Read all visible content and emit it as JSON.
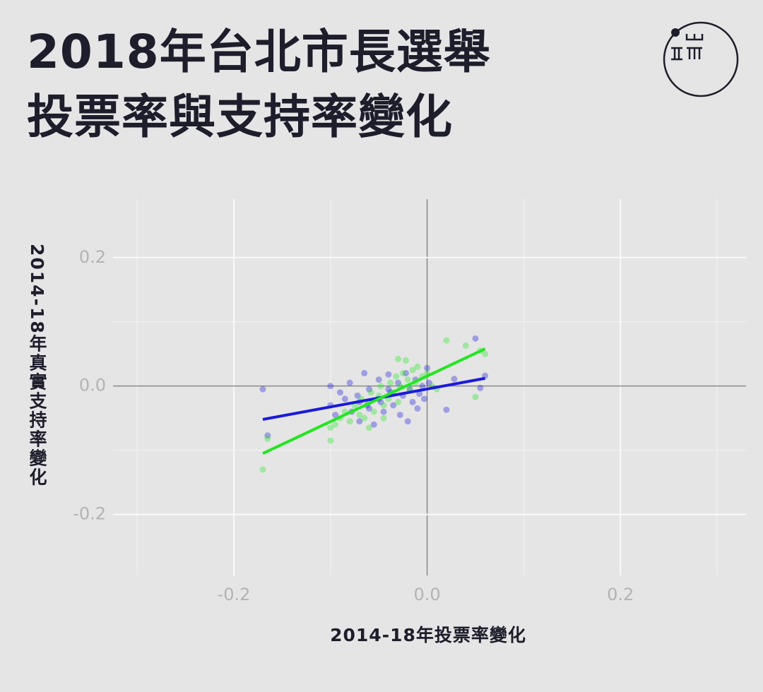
{
  "chart_data": {
    "type": "scatter",
    "title_lines": [
      "2018年台北市長選舉",
      "投票率與支持率變化"
    ],
    "x_label": "2014-18年投票率變化",
    "y_label": "2014-18年真實支持率變化",
    "xlim": [
      -0.325,
      0.33
    ],
    "ylim": [
      -0.295,
      0.291
    ],
    "xticks": [
      -0.2,
      {
        "value": 0,
        "label": "0.0"
      },
      0.2
    ],
    "yticks": [
      -0.2,
      {
        "value": 0,
        "label": "0.0"
      },
      0.2
    ],
    "x_minor_grid": [
      -0.3,
      -0.1,
      0.1,
      0.3
    ],
    "y_minor_grid": [
      -0.1,
      0.1
    ],
    "grid": true,
    "series": [
      {
        "color": "#1a1adb",
        "x": [
          -0.17,
          -0.165,
          0.05,
          0.055,
          0.06,
          0.02,
          0.028,
          -0.1,
          -0.1,
          -0.095,
          -0.09,
          -0.085,
          -0.08,
          -0.078,
          -0.072,
          -0.07,
          -0.065,
          -0.062,
          -0.06,
          -0.055,
          -0.05,
          -0.048,
          -0.045,
          -0.04,
          -0.038,
          -0.035,
          -0.03,
          -0.028,
          -0.025,
          -0.022,
          -0.02,
          -0.018,
          -0.015,
          -0.012,
          -0.01,
          -0.008,
          -0.005,
          -0.003,
          0.0,
          0.002,
          -0.06,
          -0.05,
          -0.04,
          -0.07
        ],
        "values": [
          -0.005,
          -0.077,
          0.074,
          -0.003,
          0.016,
          -0.037,
          0.011,
          0.0,
          -0.03,
          -0.045,
          -0.01,
          -0.02,
          0.005,
          -0.04,
          -0.015,
          -0.055,
          0.02,
          -0.03,
          -0.005,
          -0.06,
          0.01,
          -0.025,
          -0.04,
          0.018,
          -0.01,
          -0.03,
          0.005,
          -0.045,
          -0.015,
          0.02,
          -0.055,
          -0.005,
          -0.025,
          0.01,
          -0.035,
          -0.012,
          0.0,
          -0.02,
          0.028,
          0.005,
          -0.035,
          -0.02,
          -0.005,
          -0.025
        ],
        "fit": {
          "x": [
            -0.17,
            0.06
          ],
          "values": [
            -0.052,
            0.012
          ]
        }
      },
      {
        "color": "#22e622",
        "x": [
          -0.17,
          -0.165,
          0.02,
          0.04,
          0.06,
          0.055,
          0.05,
          -0.1,
          -0.1,
          -0.095,
          -0.09,
          -0.085,
          -0.08,
          -0.075,
          -0.07,
          -0.068,
          -0.065,
          -0.06,
          -0.058,
          -0.055,
          -0.05,
          -0.048,
          -0.045,
          -0.04,
          -0.038,
          -0.035,
          -0.032,
          -0.03,
          -0.028,
          -0.025,
          -0.022,
          -0.02,
          -0.018,
          -0.015,
          -0.012,
          -0.01,
          -0.005,
          0.0,
          0.005,
          0.01,
          -0.03,
          -0.06,
          -0.045
        ],
        "values": [
          -0.13,
          -0.082,
          0.071,
          0.063,
          0.05,
          0.055,
          -0.017,
          -0.085,
          -0.065,
          -0.06,
          -0.05,
          -0.04,
          -0.055,
          -0.03,
          -0.045,
          -0.02,
          -0.05,
          -0.025,
          -0.01,
          -0.04,
          -0.015,
          0.0,
          -0.03,
          -0.02,
          0.005,
          -0.01,
          0.015,
          -0.025,
          0.0,
          0.02,
          0.04,
          0.01,
          -0.005,
          0.025,
          0.005,
          0.03,
          0.015,
          0.02,
          0.0,
          -0.005,
          0.042,
          -0.065,
          -0.05
        ],
        "fit": {
          "x": [
            -0.17,
            0.06
          ],
          "values": [
            -0.105,
            0.058
          ]
        }
      }
    ]
  }
}
